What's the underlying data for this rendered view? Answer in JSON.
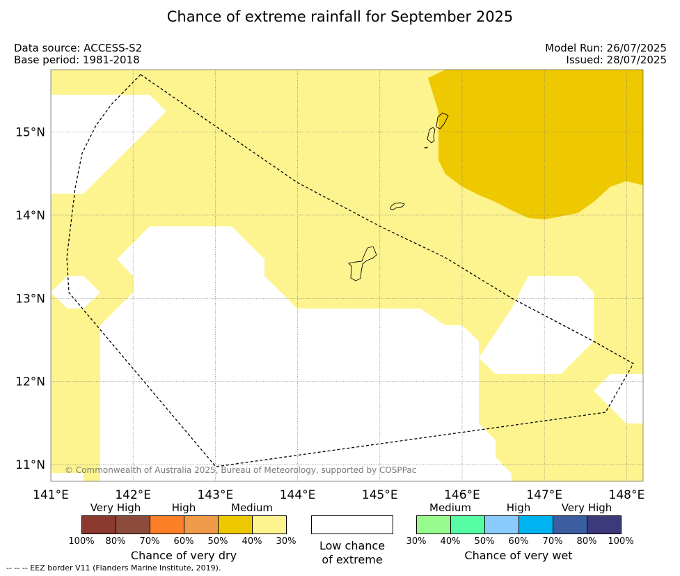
{
  "title": "Chance of extreme rainfall for September 2025",
  "data_source": "Data source: ACCESS-S2",
  "base_period": "Base period: 1981-2018",
  "model_run": "Model Run: 26/07/2025",
  "issued": "Issued: 28/07/2025",
  "copyright": "© Commonwealth of Australia 2025, Bureau of Meteorology, supported by COSPPac",
  "map": {
    "lon_labels": [
      "141°E",
      "142°E",
      "143°E",
      "144°E",
      "145°E",
      "146°E",
      "147°E",
      "148°E"
    ],
    "lat_labels": [
      "15°N",
      "14°N",
      "13°N",
      "12°N",
      "11°N"
    ],
    "lon_range": [
      141.0,
      148.2
    ],
    "lat_range": [
      10.8,
      15.75
    ],
    "colors": {
      "medium_dry": "#fdf48f",
      "medium_high_dry": "#eec800",
      "low": "#ffffff"
    }
  },
  "legend": {
    "dry": {
      "categories": [
        "Very High",
        "High",
        "Medium"
      ],
      "swatches": [
        "#8c3a30",
        "#8c4c3c",
        "#fd7f27",
        "#ee9a49",
        "#eec800",
        "#fdf48f"
      ],
      "ticks": [
        "100%",
        "80%",
        "70%",
        "60%",
        "50%",
        "40%",
        "30%"
      ],
      "title": "Chance of very dry"
    },
    "low": {
      "line1": "Low chance",
      "line2": "of extreme",
      "color": "#ffffff"
    },
    "wet": {
      "categories": [
        "Medium",
        "High",
        "Very High"
      ],
      "swatches": [
        "#98fb8e",
        "#57fda5",
        "#88cbfc",
        "#00b4f2",
        "#3a5ea0",
        "#3c3a7a"
      ],
      "ticks": [
        "30%",
        "40%",
        "50%",
        "60%",
        "70%",
        "80%",
        "100%"
      ],
      "title": "Chance of very wet"
    }
  },
  "footnote": "--  --  -- EEZ border V11 (Flanders Marine Institute, 2019)."
}
